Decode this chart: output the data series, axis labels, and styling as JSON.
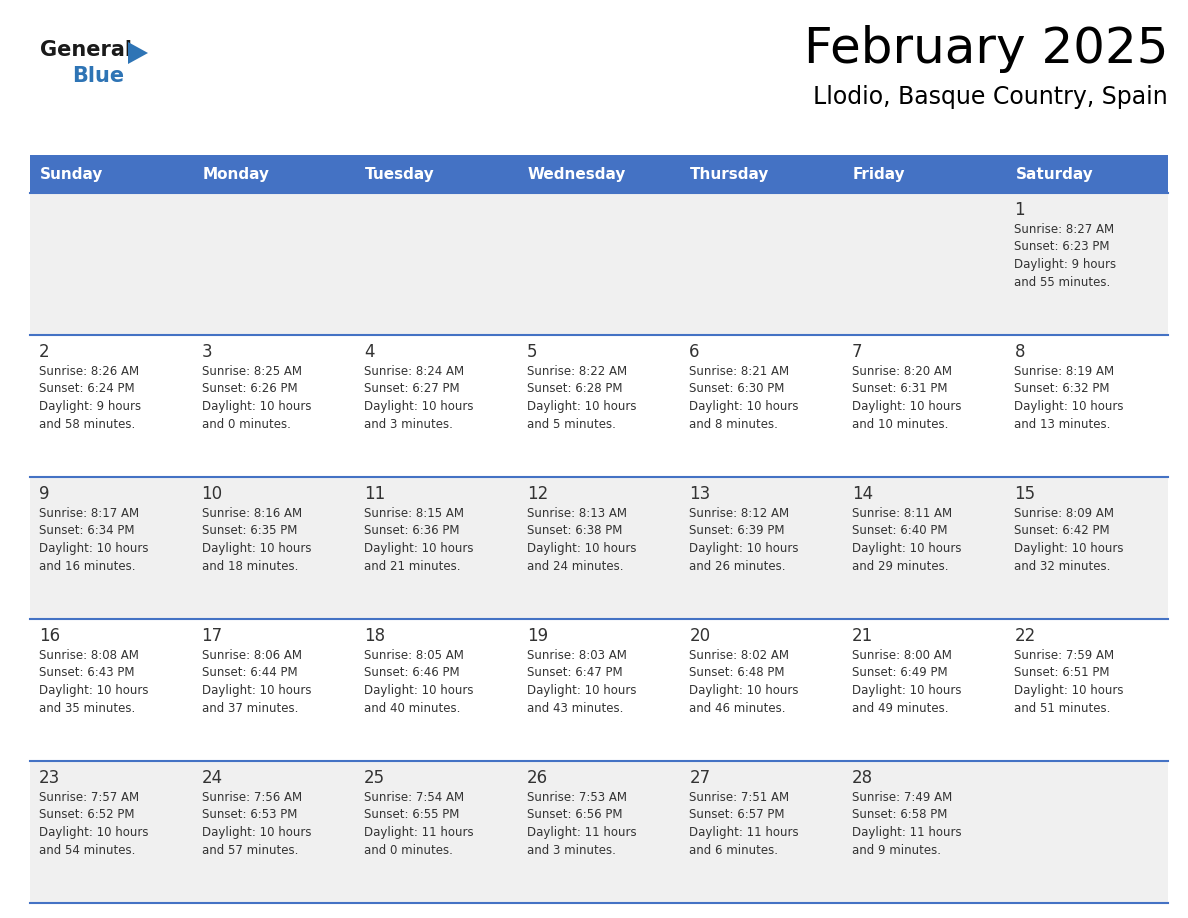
{
  "title": "February 2025",
  "subtitle": "Llodio, Basque Country, Spain",
  "header_bg": "#4472C4",
  "header_text_color": "#FFFFFF",
  "cell_bg_row0": "#F0F0F0",
  "cell_bg_row1": "#FFFFFF",
  "border_color": "#4472C4",
  "text_color": "#333333",
  "days_of_week": [
    "Sunday",
    "Monday",
    "Tuesday",
    "Wednesday",
    "Thursday",
    "Friday",
    "Saturday"
  ],
  "calendar_data": [
    [
      null,
      null,
      null,
      null,
      null,
      null,
      {
        "day": 1,
        "sunrise": "8:27 AM",
        "sunset": "6:23 PM",
        "daylight": "9 hours and 55 minutes."
      }
    ],
    [
      {
        "day": 2,
        "sunrise": "8:26 AM",
        "sunset": "6:24 PM",
        "daylight": "9 hours and 58 minutes."
      },
      {
        "day": 3,
        "sunrise": "8:25 AM",
        "sunset": "6:26 PM",
        "daylight": "10 hours and 0 minutes."
      },
      {
        "day": 4,
        "sunrise": "8:24 AM",
        "sunset": "6:27 PM",
        "daylight": "10 hours and 3 minutes."
      },
      {
        "day": 5,
        "sunrise": "8:22 AM",
        "sunset": "6:28 PM",
        "daylight": "10 hours and 5 minutes."
      },
      {
        "day": 6,
        "sunrise": "8:21 AM",
        "sunset": "6:30 PM",
        "daylight": "10 hours and 8 minutes."
      },
      {
        "day": 7,
        "sunrise": "8:20 AM",
        "sunset": "6:31 PM",
        "daylight": "10 hours and 10 minutes."
      },
      {
        "day": 8,
        "sunrise": "8:19 AM",
        "sunset": "6:32 PM",
        "daylight": "10 hours and 13 minutes."
      }
    ],
    [
      {
        "day": 9,
        "sunrise": "8:17 AM",
        "sunset": "6:34 PM",
        "daylight": "10 hours and 16 minutes."
      },
      {
        "day": 10,
        "sunrise": "8:16 AM",
        "sunset": "6:35 PM",
        "daylight": "10 hours and 18 minutes."
      },
      {
        "day": 11,
        "sunrise": "8:15 AM",
        "sunset": "6:36 PM",
        "daylight": "10 hours and 21 minutes."
      },
      {
        "day": 12,
        "sunrise": "8:13 AM",
        "sunset": "6:38 PM",
        "daylight": "10 hours and 24 minutes."
      },
      {
        "day": 13,
        "sunrise": "8:12 AM",
        "sunset": "6:39 PM",
        "daylight": "10 hours and 26 minutes."
      },
      {
        "day": 14,
        "sunrise": "8:11 AM",
        "sunset": "6:40 PM",
        "daylight": "10 hours and 29 minutes."
      },
      {
        "day": 15,
        "sunrise": "8:09 AM",
        "sunset": "6:42 PM",
        "daylight": "10 hours and 32 minutes."
      }
    ],
    [
      {
        "day": 16,
        "sunrise": "8:08 AM",
        "sunset": "6:43 PM",
        "daylight": "10 hours and 35 minutes."
      },
      {
        "day": 17,
        "sunrise": "8:06 AM",
        "sunset": "6:44 PM",
        "daylight": "10 hours and 37 minutes."
      },
      {
        "day": 18,
        "sunrise": "8:05 AM",
        "sunset": "6:46 PM",
        "daylight": "10 hours and 40 minutes."
      },
      {
        "day": 19,
        "sunrise": "8:03 AM",
        "sunset": "6:47 PM",
        "daylight": "10 hours and 43 minutes."
      },
      {
        "day": 20,
        "sunrise": "8:02 AM",
        "sunset": "6:48 PM",
        "daylight": "10 hours and 46 minutes."
      },
      {
        "day": 21,
        "sunrise": "8:00 AM",
        "sunset": "6:49 PM",
        "daylight": "10 hours and 49 minutes."
      },
      {
        "day": 22,
        "sunrise": "7:59 AM",
        "sunset": "6:51 PM",
        "daylight": "10 hours and 51 minutes."
      }
    ],
    [
      {
        "day": 23,
        "sunrise": "7:57 AM",
        "sunset": "6:52 PM",
        "daylight": "10 hours and 54 minutes."
      },
      {
        "day": 24,
        "sunrise": "7:56 AM",
        "sunset": "6:53 PM",
        "daylight": "10 hours and 57 minutes."
      },
      {
        "day": 25,
        "sunrise": "7:54 AM",
        "sunset": "6:55 PM",
        "daylight": "11 hours and 0 minutes."
      },
      {
        "day": 26,
        "sunrise": "7:53 AM",
        "sunset": "6:56 PM",
        "daylight": "11 hours and 3 minutes."
      },
      {
        "day": 27,
        "sunrise": "7:51 AM",
        "sunset": "6:57 PM",
        "daylight": "11 hours and 6 minutes."
      },
      {
        "day": 28,
        "sunrise": "7:49 AM",
        "sunset": "6:58 PM",
        "daylight": "11 hours and 9 minutes."
      },
      null
    ]
  ],
  "logo_color_general": "#1a1a1a",
  "logo_color_blue": "#2E74B5",
  "logo_triangle_color": "#2E74B5",
  "fig_width": 11.88,
  "fig_height": 9.18,
  "fig_dpi": 100
}
